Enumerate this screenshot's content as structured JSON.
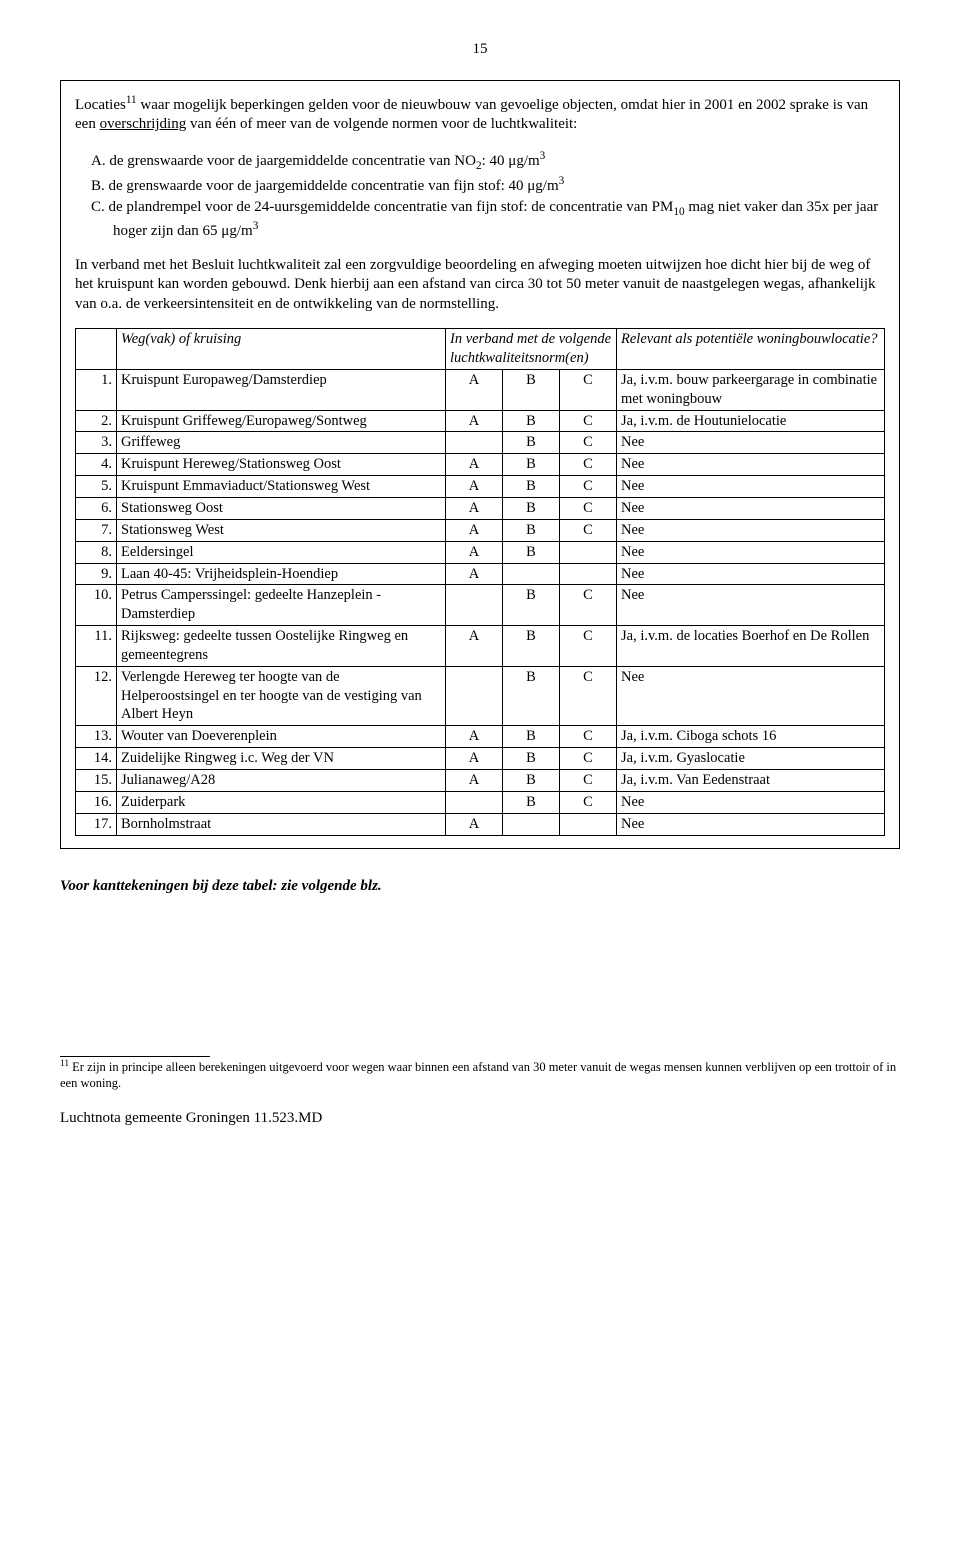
{
  "pageNumber": "15",
  "intro": {
    "prefix": "Locaties",
    "footnoteRef": "11",
    "beforeUnderline": " waar mogelijk beperkingen gelden voor de nieuwbouw van gevoelige objecten, omdat hier in 2001 en 2002 sprake is van een ",
    "underlined": "overschrijding",
    "afterUnderline": " van één of meer van de volgende normen voor de luchtkwaliteit:"
  },
  "criteria": [
    {
      "letter": "A.",
      "body": "de grenswaarde voor de jaargemiddelde concentratie van NO",
      "sub": "2",
      "tail": ": 40 μg/m",
      "sup": "3"
    },
    {
      "letter": "B.",
      "body": "de grenswaarde voor de jaargemiddelde concentratie van fijn stof: 40 μg/m",
      "sup": "3"
    },
    {
      "letter": "C.",
      "body": "de plandrempel voor de 24-uursgemiddelde concentratie van fijn stof: de concentratie van PM",
      "sub": "10",
      "tail": " mag niet vaker dan 35x per jaar hoger zijn dan 65 μg/m",
      "sup": "3"
    }
  ],
  "explain": "In verband met het Besluit luchtkwaliteit zal een zorgvuldige beoordeling en afweging moeten uitwijzen hoe dicht hier bij de weg of het kruispunt kan worden gebouwd. Denk hierbij aan een afstand van circa 30 tot 50 meter vanuit de naastgelegen wegas, afhankelijk van o.a. de verkeersintensiteit en de ontwikkeling van de normstelling.",
  "table": {
    "headers": {
      "road": "Weg(vak) of kruising",
      "norm": "In verband met de volgende luchtkwaliteitsnorm(en)",
      "relevant": "Relevant als potentiële woningbouwlocatie?"
    },
    "rows": [
      {
        "n": "1.",
        "name": "Kruispunt Europaweg/Damsterdiep",
        "a": "A",
        "b": "B",
        "c": "C",
        "rel": "Ja, i.v.m. bouw parkeergarage in combinatie met woningbouw"
      },
      {
        "n": "2.",
        "name": "Kruispunt Griffeweg/Europaweg/Sontweg",
        "a": "A",
        "b": "B",
        "c": "C",
        "rel": "Ja, i.v.m. de Houtunielocatie"
      },
      {
        "n": "3.",
        "name": "Griffeweg",
        "a": "",
        "b": "B",
        "c": "C",
        "rel": "Nee"
      },
      {
        "n": "4.",
        "name": "Kruispunt Hereweg/Stationsweg Oost",
        "a": "A",
        "b": "B",
        "c": "C",
        "rel": "Nee"
      },
      {
        "n": "5.",
        "name": "Kruispunt Emmaviaduct/Stationsweg West",
        "a": "A",
        "b": "B",
        "c": "C",
        "rel": "Nee"
      },
      {
        "n": "6.",
        "name": "Stationsweg Oost",
        "a": "A",
        "b": "B",
        "c": "C",
        "rel": "Nee"
      },
      {
        "n": "7.",
        "name": "Stationsweg West",
        "a": "A",
        "b": "B",
        "c": "C",
        "rel": "Nee"
      },
      {
        "n": "8.",
        "name": "Eeldersingel",
        "a": "A",
        "b": "B",
        "c": "",
        "rel": "Nee"
      },
      {
        "n": "9.",
        "name": "Laan 40-45: Vrijheidsplein-Hoendiep",
        "a": "A",
        "b": "",
        "c": "",
        "rel": "Nee"
      },
      {
        "n": "10.",
        "name": "Petrus Camperssingel: gedeelte Hanzeplein - Damsterdiep",
        "a": "",
        "b": "B",
        "c": "C",
        "rel": "Nee"
      },
      {
        "n": "11.",
        "name": "Rijksweg: gedeelte tussen Oostelijke Ringweg en gemeentegrens",
        "a": "A",
        "b": "B",
        "c": "C",
        "rel": "Ja, i.v.m. de locaties Boerhof en De Rollen"
      },
      {
        "n": "12.",
        "name": "Verlengde Hereweg ter hoogte van de Helperoostsingel en ter hoogte van de vestiging van Albert Heyn",
        "a": "",
        "b": "B",
        "c": "C",
        "rel": "Nee"
      },
      {
        "n": "13.",
        "name": "Wouter van Doeverenplein",
        "a": "A",
        "b": "B",
        "c": "C",
        "rel": "Ja, i.v.m. Ciboga schots 16"
      },
      {
        "n": "14.",
        "name": "Zuidelijke Ringweg i.c. Weg der VN",
        "a": "A",
        "b": "B",
        "c": "C",
        "rel": "Ja, i.v.m. Gyaslocatie"
      },
      {
        "n": "15.",
        "name": "Julianaweg/A28",
        "a": "A",
        "b": "B",
        "c": "C",
        "rel": "Ja, i.v.m. Van Eedenstraat"
      },
      {
        "n": "16.",
        "name": "Zuiderpark",
        "a": "",
        "b": "B",
        "c": "C",
        "rel": "Nee"
      },
      {
        "n": "17.",
        "name": "Bornholmstraat",
        "a": "A",
        "b": "",
        "c": "",
        "rel": "Nee"
      }
    ]
  },
  "afterNote": "Voor kanttekeningen bij deze tabel: zie volgende blz.",
  "footnote": {
    "ref": "11",
    "text": " Er zijn in principe alleen berekeningen uitgevoerd voor wegen waar binnen een afstand van 30 meter vanuit de wegas mensen kunnen verblijven op een trottoir of in een woning."
  },
  "footer": "Luchtnota gemeente Groningen 11.523.MD"
}
